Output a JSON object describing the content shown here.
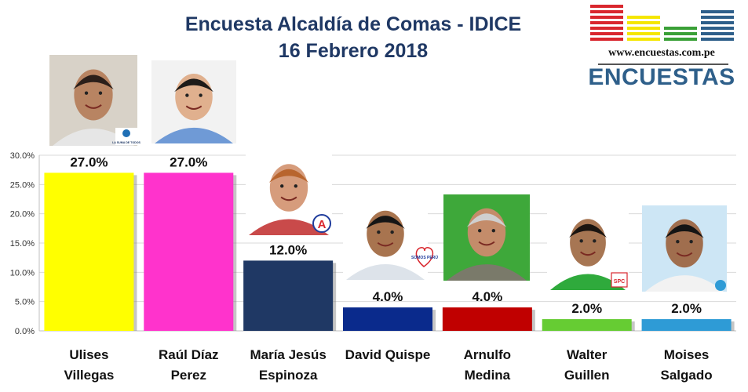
{
  "title_line1": "Encuesta Alcaldía de Comas - IDICE",
  "title_line2": "16 Febrero 2018",
  "logo": {
    "url": "www.encuestas.com.pe",
    "wordmark": "ENCUESTAS",
    "stripe_colors": [
      "#d9272e",
      "#f5e600",
      "#3aa037",
      "#2e5f8a"
    ]
  },
  "party_badges": {
    "somos_peru": "SOMOS PERÚ",
    "spc": "SPC",
    "la_suma": "LA SUMA DE TODOS"
  },
  "chart_data": {
    "type": "bar",
    "categories": [
      [
        "Ulises",
        "Villegas"
      ],
      [
        "Raúl Díaz",
        "Perez"
      ],
      [
        "María Jesús",
        "Espinoza"
      ],
      [
        "David Quispe"
      ],
      [
        "Arnulfo",
        "Medina"
      ],
      [
        "Walter",
        "Guillen"
      ],
      [
        "Moises",
        "Salgado"
      ]
    ],
    "values": [
      27.0,
      27.0,
      12.0,
      4.0,
      4.0,
      2.0,
      2.0
    ],
    "value_labels": [
      "27.0%",
      "27.0%",
      "12.0%",
      "4.0%",
      "4.0%",
      "2.0%",
      "2.0%"
    ],
    "colors": [
      "#ffff00",
      "#ff33cc",
      "#1f3864",
      "#0a2a8c",
      "#c00000",
      "#66cc33",
      "#2e9bd6"
    ],
    "ylim": [
      0,
      30
    ],
    "yticks": [
      "0.0%",
      "5.0%",
      "10.0%",
      "15.0%",
      "20.0%",
      "25.0%",
      "30.0%"
    ],
    "grid": true
  }
}
